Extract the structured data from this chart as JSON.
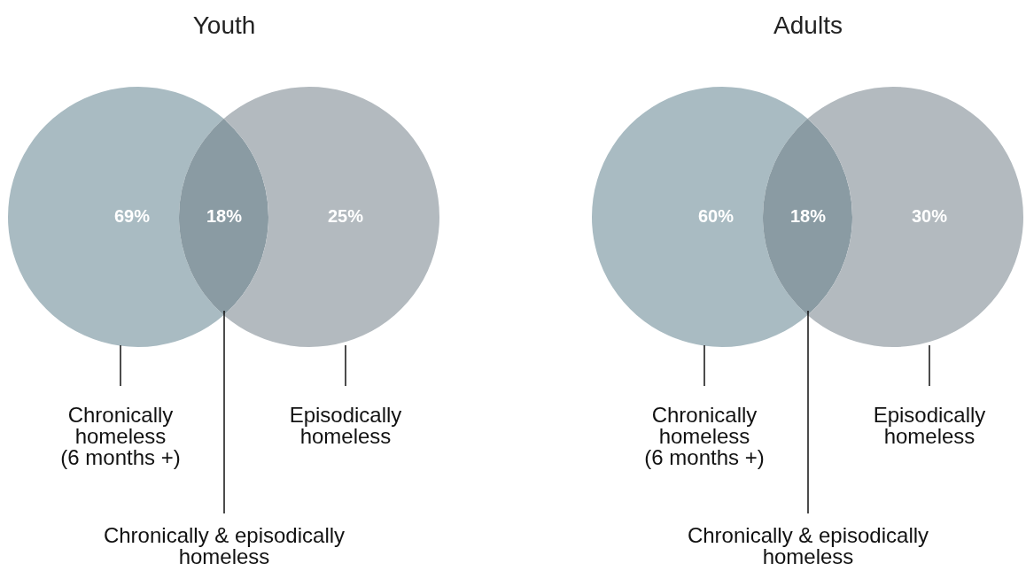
{
  "chart_data": [
    {
      "type": "other",
      "title": "Youth",
      "categories": [
        "Chronically homeless (6 months +)",
        "Chronically & episodically homeless",
        "Episodically homeless"
      ],
      "values": [
        69,
        18,
        25
      ],
      "value_labels": [
        "69%",
        "18%",
        "25%"
      ],
      "colors": [
        "#a9bbc2",
        "#8a9ba3",
        "#b3babf"
      ]
    },
    {
      "type": "other",
      "title": "Adults",
      "categories": [
        "Chronically homeless (6 months +)",
        "Chronically & episodically homeless",
        "Episodically homeless"
      ],
      "values": [
        60,
        18,
        30
      ],
      "value_labels": [
        "60%",
        "18%",
        "30%"
      ],
      "colors": [
        "#a9bbc2",
        "#8a9ba3",
        "#b3babf"
      ]
    }
  ]
}
